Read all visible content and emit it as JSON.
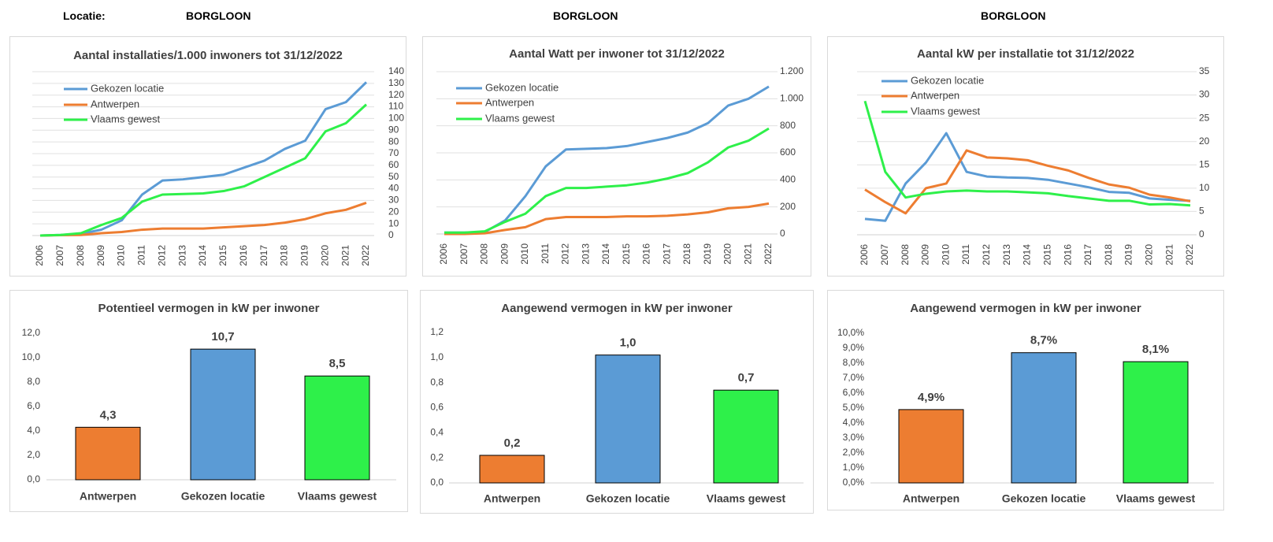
{
  "header": {
    "label": "Locatie:",
    "locations": [
      "BORGLOON",
      "BORGLOON",
      "BORGLOON"
    ]
  },
  "chart_data": [
    {
      "type": "line",
      "title": "Aantal installaties/1.000  inwoners tot 31/12/2022",
      "categories": [
        "2006",
        "2007",
        "2008",
        "2009",
        "2010",
        "2011",
        "2012",
        "2013",
        "2014",
        "2015",
        "2016",
        "2017",
        "2018",
        "2019",
        "2020",
        "2021",
        "2022"
      ],
      "series": [
        {
          "name": "Gekozen locatie",
          "color": "#5b9bd5",
          "values": [
            0,
            0.5,
            1.5,
            5,
            13,
            35,
            47,
            48,
            50,
            52,
            58,
            64,
            74,
            81,
            108,
            114,
            131
          ]
        },
        {
          "name": "Antwerpen",
          "color": "#ed7d31",
          "values": [
            0,
            0.3,
            0.5,
            2,
            3,
            5,
            6,
            6,
            6,
            7,
            8,
            9,
            11,
            14,
            19,
            22,
            28
          ]
        },
        {
          "name": "Vlaams gewest",
          "color": "#2ef04a",
          "values": [
            0,
            0.5,
            2,
            9,
            15,
            29,
            35,
            35.5,
            36,
            38,
            42,
            50,
            58,
            66,
            89,
            96,
            112
          ]
        }
      ],
      "ylim": [
        0,
        140
      ],
      "yticks": [
        0,
        10,
        20,
        30,
        40,
        50,
        60,
        70,
        80,
        90,
        100,
        110,
        120,
        130,
        140
      ],
      "grid": true
    },
    {
      "type": "line",
      "title": "Aantal Watt per inwoner tot 31/12/2022",
      "categories": [
        "2006",
        "2007",
        "2008",
        "2009",
        "2010",
        "2011",
        "2012",
        "2013",
        "2014",
        "2015",
        "2016",
        "2017",
        "2018",
        "2019",
        "2020",
        "2021",
        "2022"
      ],
      "series": [
        {
          "name": "Gekozen locatie",
          "color": "#5b9bd5",
          "values": [
            10,
            10,
            15,
            100,
            280,
            500,
            625,
            630,
            635,
            650,
            680,
            710,
            750,
            820,
            950,
            1000,
            1090
          ]
        },
        {
          "name": "Antwerpen",
          "color": "#ed7d31",
          "values": [
            0,
            0,
            5,
            30,
            50,
            110,
            125,
            125,
            125,
            130,
            130,
            135,
            145,
            160,
            190,
            200,
            225
          ]
        },
        {
          "name": "Vlaams gewest",
          "color": "#2ef04a",
          "values": [
            10,
            10,
            20,
            90,
            150,
            280,
            340,
            340,
            350,
            360,
            380,
            410,
            450,
            530,
            640,
            690,
            780
          ]
        }
      ],
      "ylim": [
        0,
        1200
      ],
      "yticks": [
        0,
        200,
        400,
        600,
        800,
        {
          "value": 1000,
          "label": "1.000"
        },
        {
          "value": 1200,
          "label": "1.200"
        }
      ],
      "grid": true
    },
    {
      "type": "line",
      "title": "Aantal kW per installatie  tot 31/12/2022",
      "categories": [
        "2006",
        "2007",
        "2008",
        "2009",
        "2010",
        "2011",
        "2012",
        "2013",
        "2014",
        "2015",
        "2016",
        "2017",
        "2018",
        "2019",
        "2020",
        "2021",
        "2022"
      ],
      "series": [
        {
          "name": "Gekozen locatie",
          "color": "#5b9bd5",
          "values": [
            3.4,
            3,
            11,
            15.5,
            21.8,
            13.5,
            12.5,
            12.3,
            12.2,
            11.8,
            11,
            10.2,
            9.2,
            9,
            7.8,
            7.5,
            7.3
          ]
        },
        {
          "name": "Antwerpen",
          "color": "#ed7d31",
          "values": [
            9.7,
            7,
            4.6,
            10,
            11,
            18.1,
            16.6,
            16.4,
            16,
            14.8,
            13.8,
            12.2,
            10.8,
            10.1,
            8.6,
            8,
            7.2
          ]
        },
        {
          "name": "Vlaams gewest",
          "color": "#2ef04a",
          "values": [
            28.7,
            13.5,
            8,
            8.8,
            9.3,
            9.5,
            9.3,
            9.3,
            9.1,
            8.9,
            8.3,
            7.8,
            7.3,
            7.3,
            6.5,
            6.6,
            6.3
          ]
        }
      ],
      "ylim": [
        0,
        35
      ],
      "yticks": [
        0,
        5,
        10,
        15,
        20,
        25,
        30,
        35
      ],
      "grid": true
    },
    {
      "type": "bar",
      "title": "Potentieel vermogen in kW per inwoner",
      "categories": [
        "Antwerpen",
        "Gekozen locatie",
        "Vlaams gewest"
      ],
      "values": [
        4.3,
        10.7,
        8.5
      ],
      "value_labels": [
        "4,3",
        "10,7",
        "8,5"
      ],
      "colors": [
        "#ed7d31",
        "#5b9bd5",
        "#2ef04a"
      ],
      "ylim": [
        0,
        12
      ],
      "yticks": [
        {
          "value": 0,
          "label": "0,0"
        },
        {
          "value": 2,
          "label": "2,0"
        },
        {
          "value": 4,
          "label": "4,0"
        },
        {
          "value": 6,
          "label": "6,0"
        },
        {
          "value": 8,
          "label": "8,0"
        },
        {
          "value": 10,
          "label": "10,0"
        },
        {
          "value": 12,
          "label": "12,0"
        }
      ],
      "grid": false
    },
    {
      "type": "bar",
      "title": "Aangewend vermogen in kW per inwoner",
      "categories": [
        "Antwerpen",
        "Gekozen locatie",
        "Vlaams gewest"
      ],
      "values": [
        0.22,
        1.02,
        0.74
      ],
      "value_labels": [
        "0,2",
        "1,0",
        "0,7"
      ],
      "colors": [
        "#ed7d31",
        "#5b9bd5",
        "#2ef04a"
      ],
      "ylim": [
        0,
        1.2
      ],
      "yticks": [
        {
          "value": 0,
          "label": "0,0"
        },
        {
          "value": 0.2,
          "label": "0,2"
        },
        {
          "value": 0.4,
          "label": "0,4"
        },
        {
          "value": 0.6,
          "label": "0,6"
        },
        {
          "value": 0.8,
          "label": "0,8"
        },
        {
          "value": 1,
          "label": "1,0"
        },
        {
          "value": 1.2,
          "label": "1,2"
        }
      ],
      "grid": false
    },
    {
      "type": "bar",
      "title": "Aangewend vermogen in kW per inwoner",
      "categories": [
        "Antwerpen",
        "Gekozen locatie",
        "Vlaams gewest"
      ],
      "values": [
        4.9,
        8.7,
        8.1
      ],
      "value_labels": [
        "4,9%",
        "8,7%",
        "8,1%"
      ],
      "colors": [
        "#ed7d31",
        "#5b9bd5",
        "#2ef04a"
      ],
      "ylim": [
        0,
        10
      ],
      "yticks": [
        {
          "value": 0,
          "label": "0,0%"
        },
        {
          "value": 1,
          "label": "1,0%"
        },
        {
          "value": 2,
          "label": "2,0%"
        },
        {
          "value": 3,
          "label": "3,0%"
        },
        {
          "value": 4,
          "label": "4,0%"
        },
        {
          "value": 5,
          "label": "5,0%"
        },
        {
          "value": 6,
          "label": "6,0%"
        },
        {
          "value": 7,
          "label": "7,0%"
        },
        {
          "value": 8,
          "label": "8,0%"
        },
        {
          "value": 9,
          "label": "9,0%"
        },
        {
          "value": 10,
          "label": "10,0%"
        }
      ],
      "grid": false
    }
  ]
}
